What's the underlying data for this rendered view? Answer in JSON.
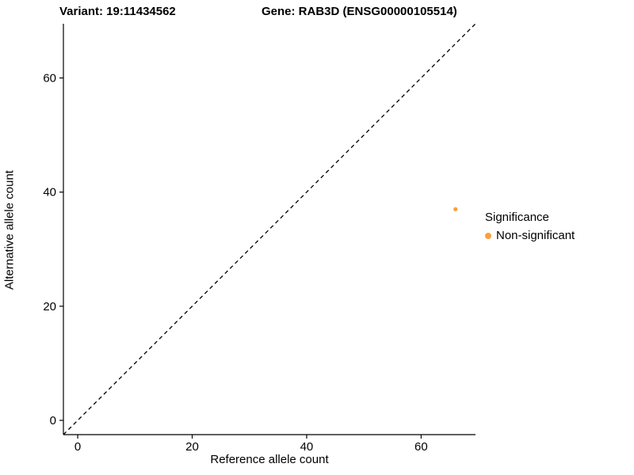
{
  "titles": {
    "variant": "Variant: 19:11434562",
    "gene": "Gene: RAB3D (ENSG00000105514)"
  },
  "chart_data": {
    "type": "scatter",
    "title_left": "Variant: 19:11434562",
    "title_right": "Gene: RAB3D (ENSG00000105514)",
    "xlabel": "Reference allele count",
    "ylabel": "Alternative allele count",
    "xlim": [
      -2.5,
      69.5
    ],
    "ylim": [
      -2.5,
      69.5
    ],
    "xticks": [
      0,
      20,
      40,
      60
    ],
    "yticks": [
      0,
      20,
      40,
      60
    ],
    "grid": false,
    "identity_line": {
      "style": "dashed",
      "color": "#000000",
      "from": [
        -2.5,
        -2.5
      ],
      "to": [
        69.5,
        69.5
      ]
    },
    "series": [
      {
        "name": "Non-significant",
        "color": "#F9A03F",
        "points": [
          {
            "x": 66,
            "y": 37
          }
        ]
      }
    ],
    "legend": {
      "title": "Significance",
      "position": "right",
      "entries": [
        {
          "label": "Non-significant",
          "color": "#F9A03F"
        }
      ]
    }
  }
}
